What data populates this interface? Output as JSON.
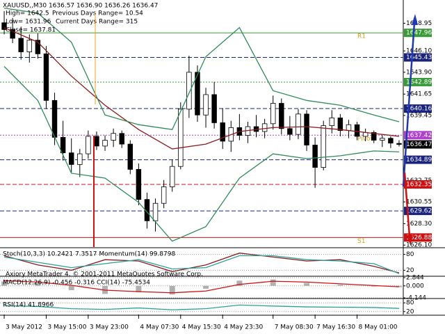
{
  "chart_data": [
    {
      "type": "candlestick",
      "title": "XAUUSD,,M30 1636.57 1636.90 1636.26 1636.47",
      "info": [
        "High= 1642.5",
        "Previous Days Range= 10.54",
        "Low= 1631.96",
        "Current Days Range= 315",
        "Close= 1637.81"
      ],
      "xlim": [
        -0.5,
        47.5
      ],
      "xticks": [
        {
          "value": 0,
          "label": "3 May 2012"
        },
        {
          "value": 5,
          "label": "3 May 15:00"
        },
        {
          "value": 10,
          "label": "3 May 23:00"
        },
        {
          "value": 16,
          "label": "4 May 07:30"
        },
        {
          "value": 21,
          "label": "4 May 15:30"
        },
        {
          "value": 26,
          "label": "4 May 23:30"
        },
        {
          "value": 32,
          "label": "7 May 08:30"
        },
        {
          "value": 37,
          "label": "7 May 16:30"
        },
        {
          "value": 42,
          "label": "8 May 01:00"
        }
      ],
      "ylim": [
        1625.9,
        1651.2
      ],
      "yticks": [
        1648.95,
        {
          "value": 1646.1,
          "label": "1646.10"
        },
        {
          "value": 1643.9,
          "label": "1643.90"
        },
        1641.65,
        1639.45,
        1632.75,
        1630.55,
        {
          "value": 1628.3,
          "label": "1628.30"
        },
        {
          "value": 1626.1,
          "label": "1626.10"
        }
      ],
      "open": [
        1649.0,
        1648.3,
        1647.4,
        1646.0,
        1647.2,
        1645.8,
        1641.0,
        1637.2,
        1635.6,
        1634.4,
        1635.5,
        1637.3,
        1636.3,
        1636.9,
        1637.6,
        1636.5,
        1633.9,
        1630.8,
        1628.6,
        1630.4,
        1632.1,
        1634.2,
        1640.1,
        1643.9,
        1639.5,
        1641.6,
        1638.7,
        1636.8,
        1638.2,
        1637.4,
        1638.3,
        1637.8,
        1638.6,
        1640.7,
        1638.1,
        1637.5,
        1639.6,
        1636.4,
        1634.1,
        1638.4,
        1639.2,
        1637.9,
        1638.5,
        1637.3,
        1637.7,
        1636.9,
        1637.1,
        1636.57
      ],
      "high": [
        1650.2,
        1649.5,
        1648.6,
        1647.8,
        1647.9,
        1646.6,
        1641.8,
        1638.9,
        1637.1,
        1636.0,
        1637.9,
        1637.8,
        1637.4,
        1638.1,
        1637.9,
        1636.9,
        1634.5,
        1631.5,
        1630.9,
        1632.8,
        1634.9,
        1640.8,
        1645.6,
        1644.6,
        1642.3,
        1642.9,
        1640.2,
        1638.9,
        1639.6,
        1638.8,
        1639.5,
        1639.1,
        1641.5,
        1641.2,
        1639.4,
        1640.1,
        1640.0,
        1637.2,
        1638.9,
        1640.0,
        1639.6,
        1639.0,
        1638.8,
        1638.1,
        1637.9,
        1637.4,
        1637.3,
        1636.9
      ],
      "low": [
        1647.8,
        1646.9,
        1645.2,
        1644.9,
        1645.3,
        1640.1,
        1636.4,
        1634.8,
        1633.6,
        1633.1,
        1635.0,
        1635.9,
        1635.8,
        1636.2,
        1636.1,
        1633.4,
        1630.2,
        1627.8,
        1627.5,
        1629.9,
        1631.6,
        1633.9,
        1639.2,
        1638.8,
        1638.2,
        1638.1,
        1636.0,
        1635.7,
        1636.9,
        1636.6,
        1637.2,
        1637.1,
        1638.0,
        1637.5,
        1636.9,
        1637.0,
        1635.8,
        1632.0,
        1633.8,
        1637.6,
        1637.3,
        1637.1,
        1636.9,
        1636.8,
        1636.6,
        1636.2,
        1636.1,
        1636.26
      ],
      "close": [
        1648.3,
        1647.4,
        1646.0,
        1647.2,
        1645.8,
        1641.0,
        1637.2,
        1635.6,
        1634.4,
        1635.5,
        1637.3,
        1636.3,
        1636.9,
        1637.6,
        1636.5,
        1633.9,
        1630.8,
        1628.6,
        1630.4,
        1632.1,
        1634.2,
        1640.1,
        1643.9,
        1639.5,
        1641.6,
        1638.7,
        1636.8,
        1638.2,
        1637.4,
        1638.3,
        1637.8,
        1638.6,
        1640.7,
        1638.1,
        1637.5,
        1639.6,
        1636.4,
        1634.1,
        1638.4,
        1639.2,
        1637.9,
        1638.5,
        1637.3,
        1637.7,
        1636.9,
        1637.1,
        1636.6,
        1636.47
      ],
      "lines": [
        {
          "color": "#8b1a1a",
          "x": [
            0,
            4,
            8,
            12,
            16,
            20,
            24,
            28,
            32,
            36,
            40,
            44,
            47
          ],
          "values": [
            1648.5,
            1647.0,
            1643.5,
            1640.5,
            1638.0,
            1636.0,
            1636.5,
            1637.8,
            1638.2,
            1638.3,
            1638.0,
            1637.6,
            1637.3
          ]
        },
        {
          "color": "#2e8b57",
          "x": [
            0,
            4,
            8,
            12,
            16,
            20,
            24,
            28,
            32,
            36,
            40,
            44,
            47
          ],
          "values": [
            1650.5,
            1650.0,
            1647.0,
            1639.5,
            1638.5,
            1638.0,
            1645.5,
            1648.5,
            1642.0,
            1641.0,
            1640.5,
            1639.5,
            1638.8
          ]
        },
        {
          "color": "#2e8b57",
          "x": [
            0,
            4,
            8,
            12,
            16,
            20,
            24,
            28,
            32,
            36,
            40,
            44,
            47
          ],
          "values": [
            1644.5,
            1641.0,
            1633.5,
            1633.0,
            1630.5,
            1626.5,
            1628.0,
            1633.0,
            1635.5,
            1635.0,
            1635.3,
            1635.8,
            1635.7
          ]
        }
      ],
      "levels": [
        {
          "value": 1647.96,
          "color": "#3a9a3a",
          "style": "solid",
          "label": "R1"
        },
        {
          "value": 1645.43,
          "color": "#1a237e",
          "style": "dash"
        },
        {
          "value": 1642.89,
          "color": "#3a9a3a",
          "style": "dot"
        },
        {
          "value": 1640.16,
          "color": "#1a237e",
          "style": "dash"
        },
        {
          "value": 1637.42,
          "color": "#b03fcf",
          "style": "dot",
          "label": "Pivot"
        },
        {
          "value": 1634.89,
          "color": "#1a237e",
          "style": "dash"
        },
        {
          "value": 1632.35,
          "color": "#d01010",
          "style": "dash"
        },
        {
          "value": 1629.62,
          "color": "#1a237e",
          "style": "dash"
        },
        {
          "value": 1626.88,
          "color": "#d01010",
          "style": "solid",
          "label": "S1"
        }
      ]
    },
    {
      "type": "line",
      "title": "Stoch(10,3,3) 10.2421 7.3517  Momentum(14) 99.8798",
      "copyright": "Axiory MetaTrader 4, © 2001-2011 MetaQuotes Software Corp.",
      "ylim": [
        0,
        100
      ],
      "yticks": [
        80,
        20
      ],
      "lines": [
        {
          "color": "#8b1a1a",
          "x": [
            0,
            4,
            8,
            12,
            16,
            20,
            24,
            28,
            32,
            36,
            40,
            44,
            47
          ],
          "values": [
            75,
            40,
            20,
            60,
            55,
            15,
            40,
            85,
            70,
            55,
            60,
            35,
            10.2421
          ]
        },
        {
          "color": "#2aa198",
          "x": [
            0,
            4,
            8,
            12,
            16,
            20,
            24,
            28,
            32,
            36,
            40,
            44,
            47
          ],
          "values": [
            70,
            50,
            30,
            45,
            60,
            25,
            30,
            75,
            75,
            60,
            55,
            45,
            7.3517
          ]
        }
      ]
    },
    {
      "type": "line",
      "title": "MACD(12,26,9) -0.456 -0.316  CCI(14) -75.4534",
      "ylim": [
        -4.144,
        2.844
      ],
      "yticks": [
        {
          "value": 2.844,
          "label": "2.844"
        },
        {
          "value": 0,
          "label": "0.000"
        },
        {
          "value": -4.144,
          "label": "-4.144"
        }
      ],
      "bars": {
        "color": "#b0b0b0",
        "x": [
          0,
          4,
          8,
          12,
          16,
          20,
          24,
          28,
          32,
          36,
          40,
          44,
          47
        ],
        "values": [
          1.5,
          1.0,
          -1.5,
          -2.8,
          -2.2,
          -3.0,
          -1.0,
          1.8,
          2.2,
          1.0,
          0.4,
          -0.2,
          -0.456
        ]
      },
      "lines": [
        {
          "color": "#d01010",
          "x": [
            0,
            4,
            8,
            12,
            16,
            20,
            24,
            28,
            32,
            36,
            40,
            44,
            47
          ],
          "values": [
            1.8,
            1.3,
            0.2,
            -1.5,
            -2.0,
            -2.4,
            -1.8,
            0.5,
            1.6,
            1.3,
            0.7,
            0.1,
            -0.316
          ]
        }
      ]
    },
    {
      "type": "line",
      "title": "RSI(14) 41.8966",
      "ylim": [
        0,
        100
      ],
      "yticks": [
        80,
        20
      ],
      "lines": [
        {
          "color": "#2aa198",
          "x": [
            0,
            4,
            8,
            12,
            16,
            20,
            24,
            28,
            32,
            36,
            40,
            44,
            47
          ],
          "values": [
            60,
            55,
            40,
            35,
            45,
            32,
            40,
            65,
            58,
            52,
            50,
            48,
            41.8966
          ]
        }
      ]
    }
  ]
}
